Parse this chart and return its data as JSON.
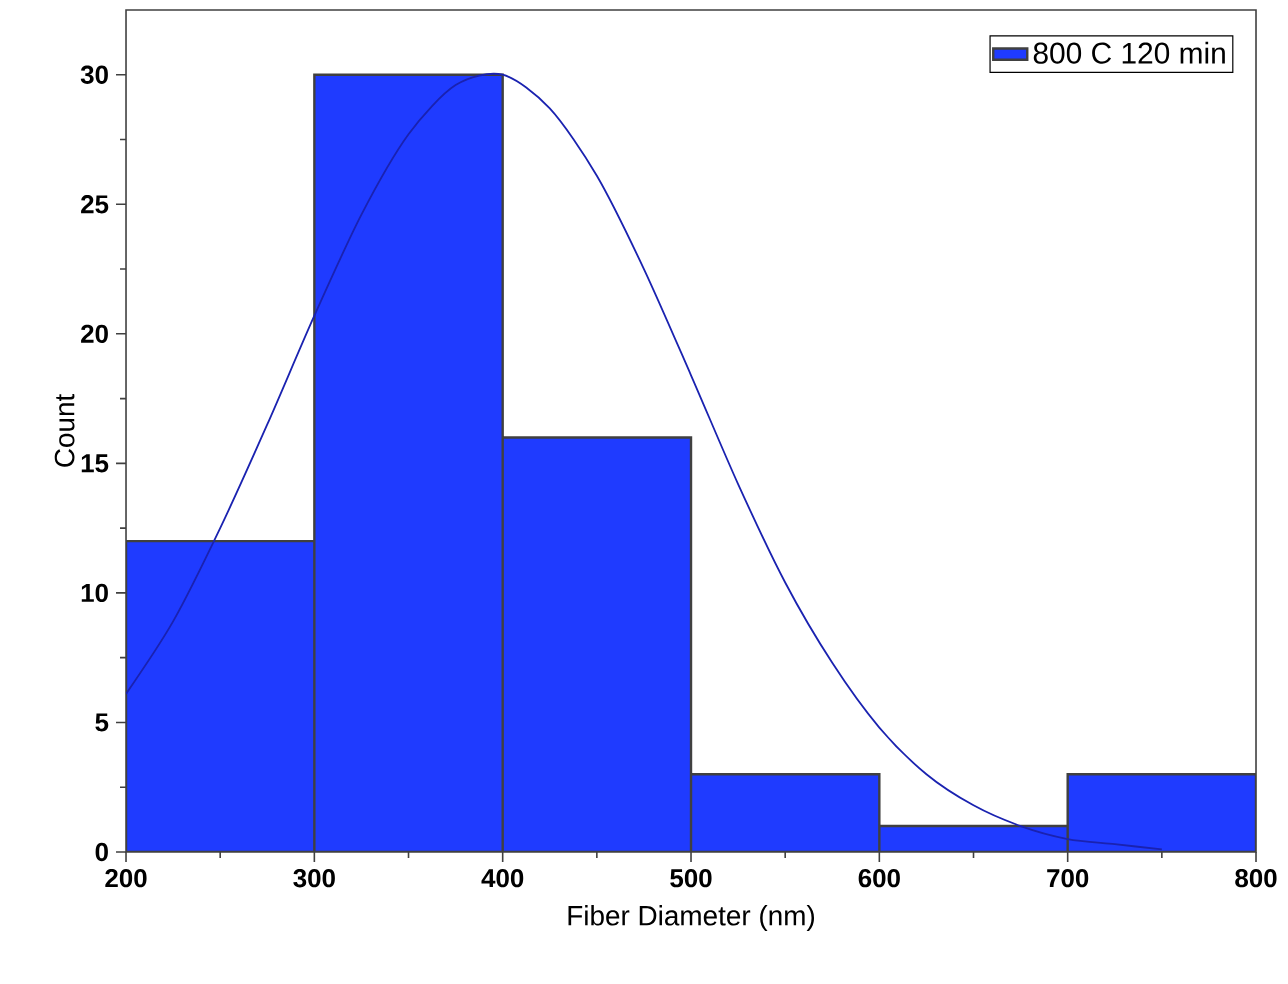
{
  "chart_data": {
    "type": "histogram",
    "xlabel": "Fiber Diameter (nm)",
    "ylabel": "Count",
    "bins": [
      200,
      300,
      400,
      500,
      600,
      700,
      800
    ],
    "series": [
      {
        "name": "800 C 120 min",
        "color": "#1f3bff",
        "values": [
          12,
          30,
          16,
          3,
          1,
          3
        ]
      },
      {
        "type": "line",
        "color": "#1a22b0",
        "x": [
          200,
          225,
          250,
          275,
          300,
          325,
          350,
          375,
          400,
          425,
          450,
          475,
          500,
          525,
          550,
          575,
          600,
          625,
          650,
          675,
          700,
          725,
          750
        ],
        "values": [
          6.1,
          8.9,
          12.5,
          16.5,
          20.7,
          24.6,
          27.7,
          29.6,
          30.0,
          28.7,
          26.1,
          22.5,
          18.4,
          14.2,
          10.4,
          7.3,
          4.8,
          3.0,
          1.8,
          1.0,
          0.5,
          0.3,
          0.1
        ]
      }
    ],
    "xlim": [
      200,
      800
    ],
    "xticks": [
      200,
      300,
      400,
      500,
      600,
      700,
      800
    ],
    "ylim": [
      0,
      32.5
    ],
    "yticks": [
      0,
      5,
      10,
      15,
      20,
      25,
      30
    ],
    "legend": "top right",
    "grid": false
  }
}
